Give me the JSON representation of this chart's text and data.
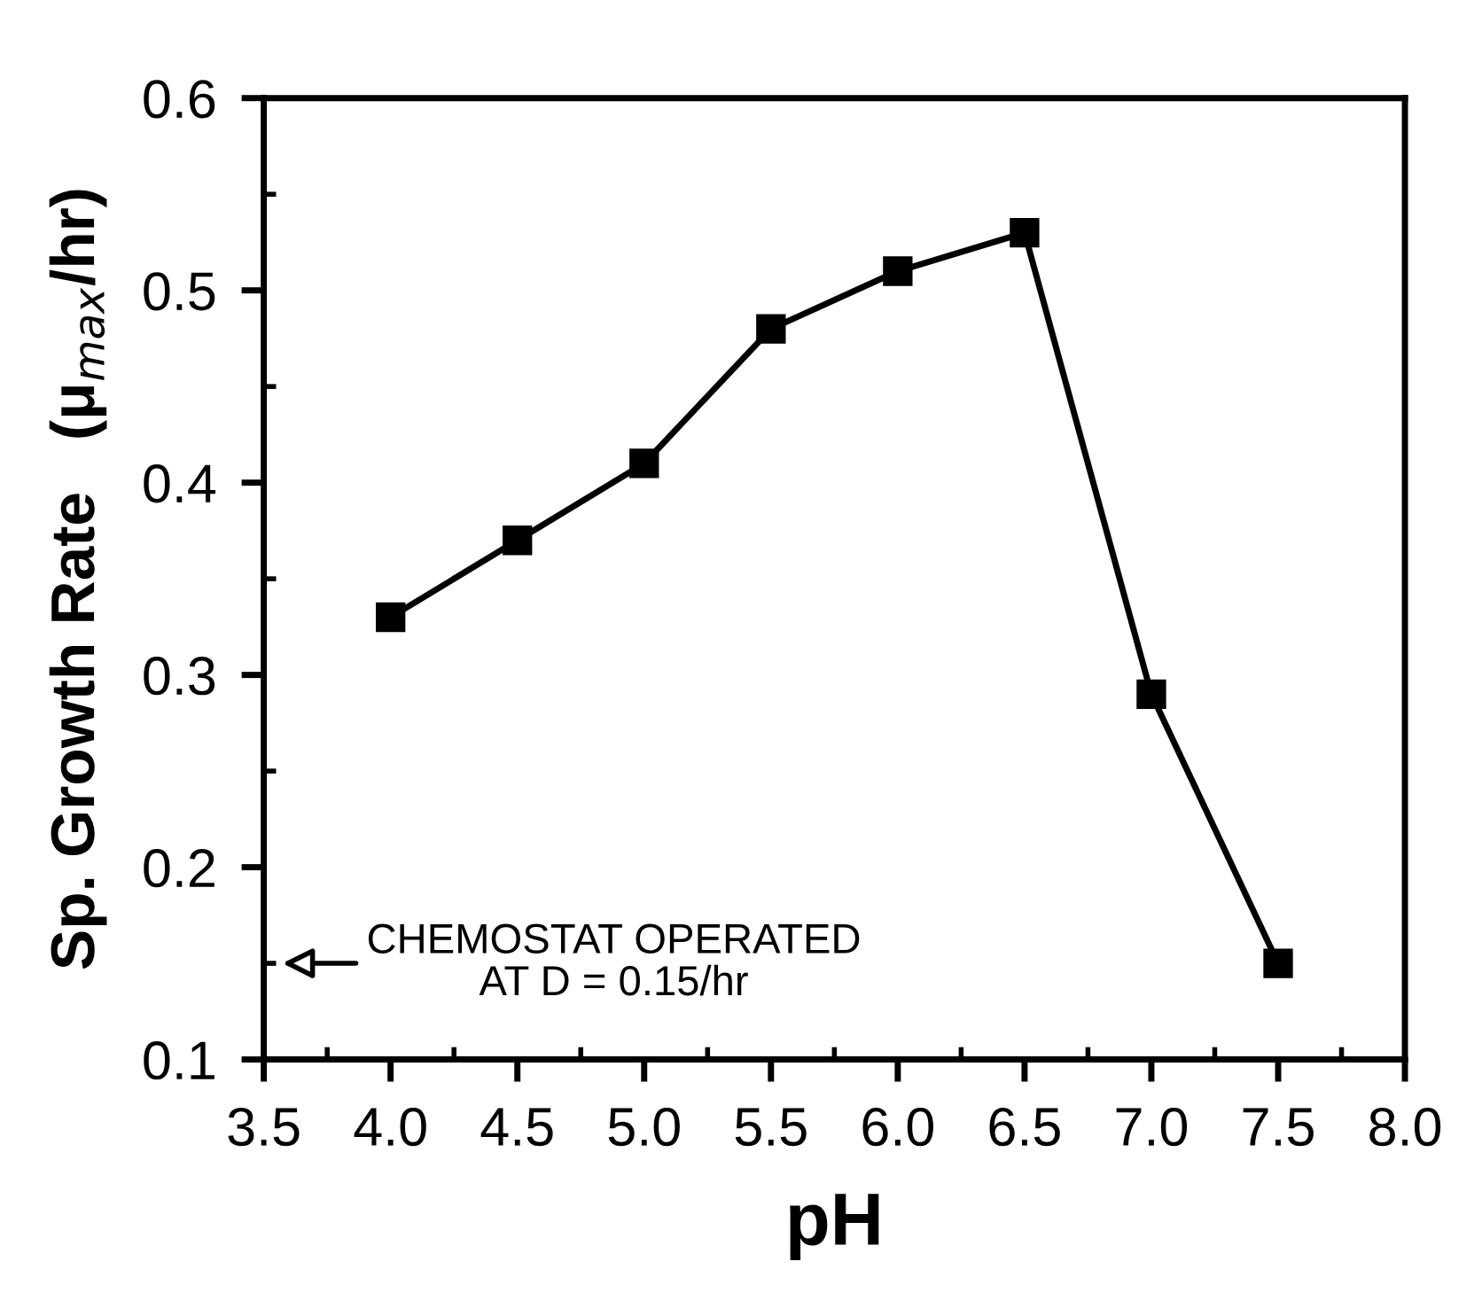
{
  "chart_data": {
    "type": "line",
    "xlabel": "pH",
    "ylabel": "Sp. Growth Rate   (μ$_{max}$/hr)",
    "x": [
      4.0,
      4.5,
      5.0,
      5.5,
      6.0,
      6.5,
      7.0,
      7.5
    ],
    "series": [
      {
        "color": "#000000",
        "values": [
          0.33,
          0.37,
          0.41,
          0.48,
          0.51,
          0.53,
          0.29,
          0.15
        ]
      }
    ],
    "xlim": [
      3.5,
      8.0
    ],
    "xticks": [
      {
        "value": 3.5,
        "label": "3.5"
      },
      {
        "value": 4.0,
        "label": "4.0"
      },
      {
        "value": 4.5,
        "label": "4.5"
      },
      {
        "value": 5.0,
        "label": "5.0"
      },
      {
        "value": 5.5,
        "label": "5.5"
      },
      {
        "value": 6.0,
        "label": "6.0"
      },
      {
        "value": 6.5,
        "label": "6.5"
      },
      {
        "value": 7.0,
        "label": "7.0"
      },
      {
        "value": 7.5,
        "label": "7.5"
      },
      {
        "value": 8.0,
        "label": "8.0"
      }
    ],
    "ylim": [
      0.1,
      0.6
    ],
    "yticks": [
      0.1,
      0.2,
      0.3,
      0.4,
      0.5,
      0.6
    ],
    "annotations": [
      "CHEMOSTAT OPERATED\nAT D = 0.15/hr"
    ],
    "marker": "square",
    "line_style": "solid",
    "grid": false,
    "legend": false
  }
}
